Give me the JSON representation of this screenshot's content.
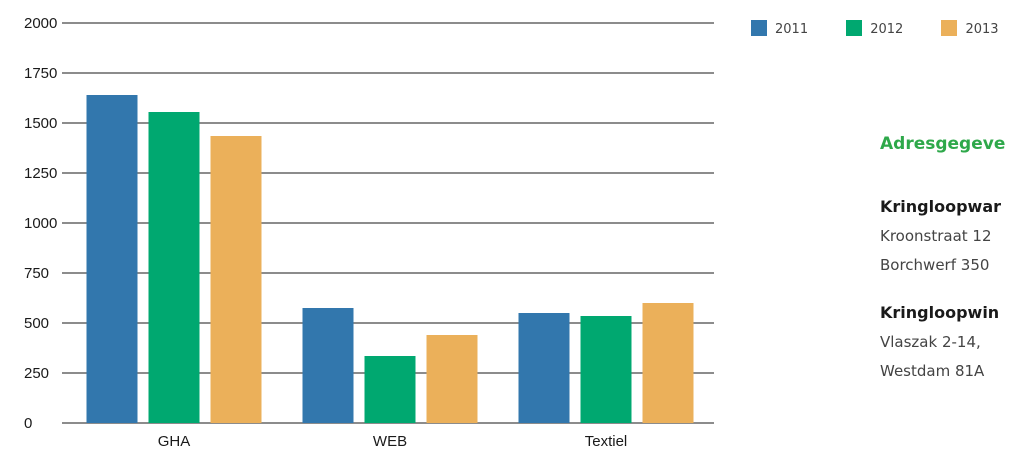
{
  "chart_data": {
    "type": "bar",
    "title": "",
    "xlabel": "",
    "ylabel": "",
    "categories": [
      "GHA",
      "WEB",
      "Textiel"
    ],
    "series": [
      {
        "name": "2011",
        "color": "#3277ad",
        "values": [
          1640,
          575,
          550
        ]
      },
      {
        "name": "2012",
        "color": "#00a870",
        "values": [
          1555,
          335,
          535
        ]
      },
      {
        "name": "2013",
        "color": "#ebb05a",
        "values": [
          1435,
          440,
          600
        ]
      }
    ],
    "ylim": [
      0,
      2000
    ],
    "yticks": [
      "0",
      "250",
      "500",
      "750",
      "1000",
      "1250",
      "1500",
      "1750",
      "2000"
    ],
    "grid": true,
    "legend_position": "top-right"
  },
  "legend": {
    "items": [
      {
        "label": "2011",
        "color": "#3277ad"
      },
      {
        "label": "2012",
        "color": "#00a870"
      },
      {
        "label": "2013",
        "color": "#ebb05a"
      }
    ]
  },
  "side_panel": {
    "heading": "Adresgegeve",
    "blocks": [
      {
        "name": "Kringloopwar",
        "lines": [
          "Kroonstraat 12",
          "Borchwerf 350"
        ]
      },
      {
        "name": "Kringloopwin",
        "lines": [
          "Vlaszak 2-14,",
          "Westdam 81A"
        ]
      }
    ]
  },
  "colors": {
    "axis": "#1a1a1a",
    "grid": "#1a1a1a",
    "heading": "#2ea84a",
    "text": "#444444"
  }
}
